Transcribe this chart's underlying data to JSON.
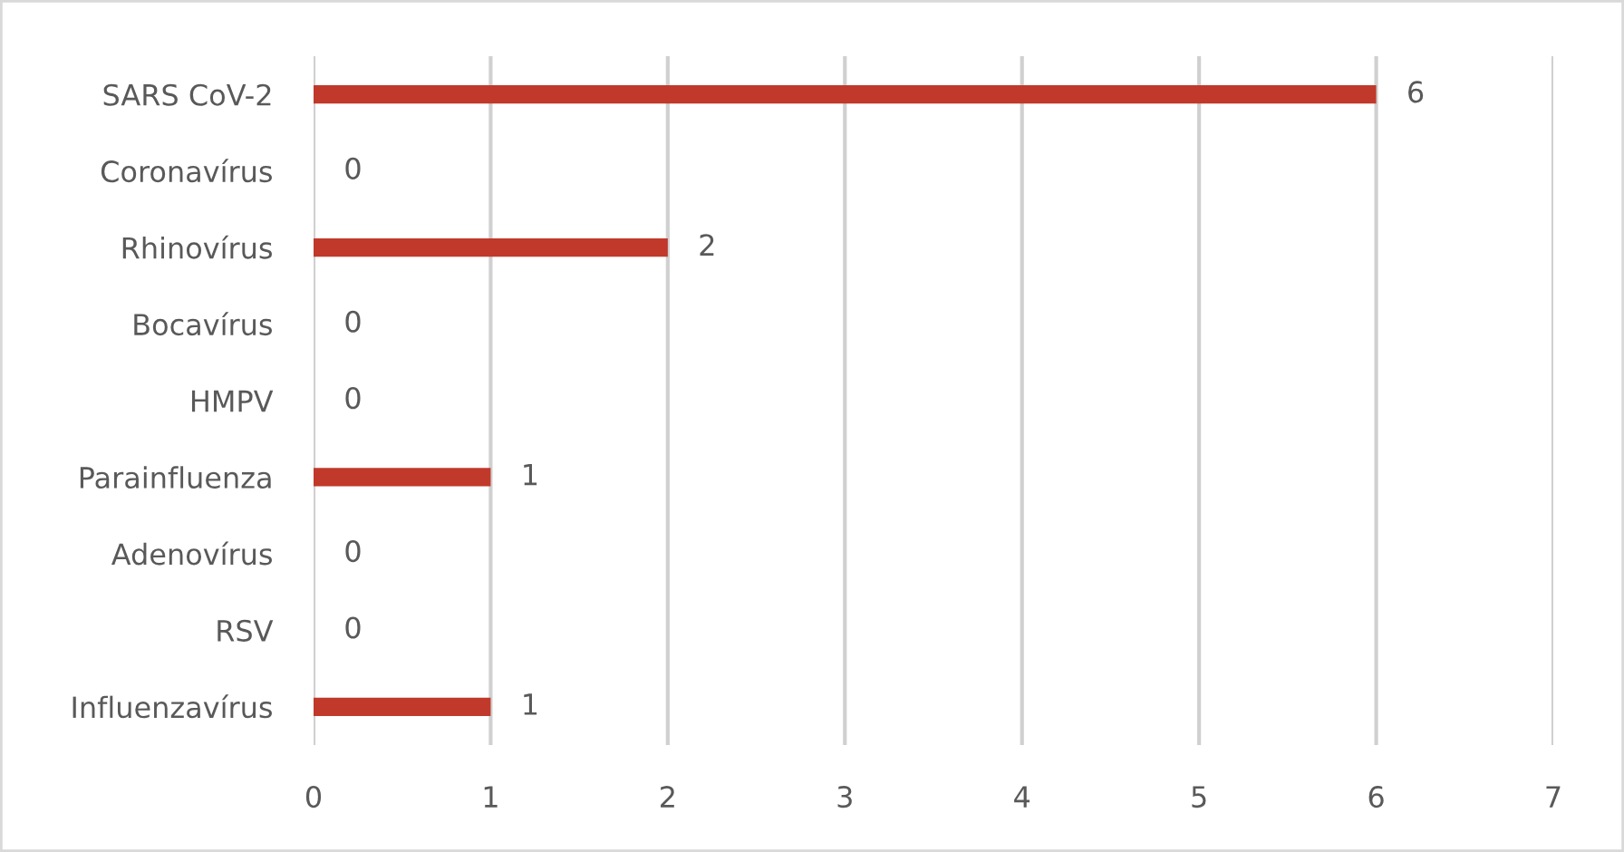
{
  "chart_data": {
    "type": "bar",
    "orientation": "horizontal",
    "categories": [
      "SARS CoV-2",
      "Coronavírus",
      "Rhinovírus",
      "Bocavírus",
      "HMPV",
      "Parainfluenza",
      "Adenovírus",
      "RSV",
      "Influenzavírus"
    ],
    "values": [
      6,
      0,
      2,
      0,
      0,
      1,
      0,
      0,
      1
    ],
    "color": "#c0392b",
    "xlim": [
      0,
      7
    ],
    "xticks": [
      0,
      1,
      2,
      3,
      4,
      5,
      6,
      7
    ],
    "grid": "x",
    "data_labels": true
  }
}
